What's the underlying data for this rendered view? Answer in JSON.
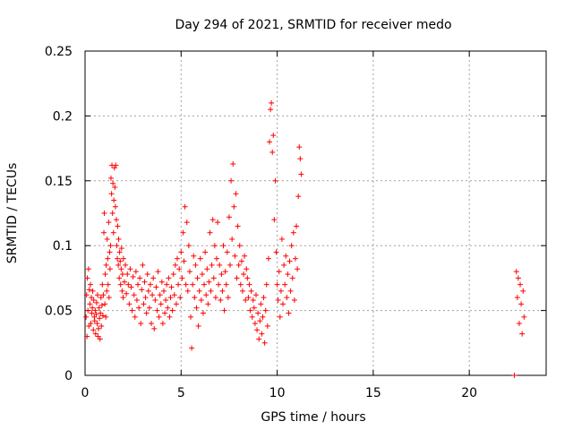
{
  "chart_data": {
    "type": "scatter",
    "title": "Day 294 of 2021, SRMTID for receiver medo",
    "xlabel": "GPS time / hours",
    "ylabel": "SRMTID / TECUs",
    "xlim": [
      0,
      24
    ],
    "ylim": [
      0,
      0.25
    ],
    "xticks": [
      0,
      5,
      10,
      15,
      20
    ],
    "yticks": [
      0,
      0.05,
      0.1,
      0.15,
      0.2,
      0.25
    ],
    "xtick_labels": [
      "0",
      "5",
      "10",
      "15",
      "20"
    ],
    "ytick_labels": [
      "0",
      "0.05",
      "0.1",
      "0.15",
      "0.2",
      "0.25"
    ],
    "grid": true,
    "marker": "+",
    "color": "#ff0000",
    "series": [
      {
        "name": "SRMTID",
        "points": [
          [
            0.05,
            0.045
          ],
          [
            0.08,
            0.062
          ],
          [
            0.1,
            0.03
          ],
          [
            0.12,
            0.075
          ],
          [
            0.15,
            0.05
          ],
          [
            0.18,
            0.082
          ],
          [
            0.2,
            0.038
          ],
          [
            0.22,
            0.066
          ],
          [
            0.25,
            0.055
          ],
          [
            0.28,
            0.07
          ],
          [
            0.3,
            0.04
          ],
          [
            0.33,
            0.06
          ],
          [
            0.35,
            0.048
          ],
          [
            0.38,
            0.052
          ],
          [
            0.4,
            0.065
          ],
          [
            0.43,
            0.035
          ],
          [
            0.45,
            0.058
          ],
          [
            0.48,
            0.045
          ],
          [
            0.5,
            0.042
          ],
          [
            0.53,
            0.05
          ],
          [
            0.55,
            0.032
          ],
          [
            0.58,
            0.047
          ],
          [
            0.6,
            0.056
          ],
          [
            0.63,
            0.04
          ],
          [
            0.65,
            0.062
          ],
          [
            0.68,
            0.03
          ],
          [
            0.7,
            0.036
          ],
          [
            0.73,
            0.052
          ],
          [
            0.75,
            0.044
          ],
          [
            0.78,
            0.028
          ],
          [
            0.8,
            0.048
          ],
          [
            0.83,
            0.06
          ],
          [
            0.85,
            0.038
          ],
          [
            0.88,
            0.054
          ],
          [
            0.9,
            0.07
          ],
          [
            0.93,
            0.046
          ],
          [
            0.95,
            0.062
          ],
          [
            0.98,
            0.11
          ],
          [
            1.0,
            0.125
          ],
          [
            1.03,
            0.055
          ],
          [
            1.05,
            0.078
          ],
          [
            1.08,
            0.045
          ],
          [
            1.1,
            0.085
          ],
          [
            1.13,
            0.065
          ],
          [
            1.15,
            0.105
          ],
          [
            1.18,
            0.09
          ],
          [
            1.2,
            0.07
          ],
          [
            1.23,
            0.118
          ],
          [
            1.25,
            0.06
          ],
          [
            1.28,
            0.095
          ],
          [
            1.3,
            0.082
          ],
          [
            1.33,
            0.1
          ],
          [
            1.35,
            0.152
          ],
          [
            1.38,
            0.14
          ],
          [
            1.4,
            0.162
          ],
          [
            1.43,
            0.125
          ],
          [
            1.45,
            0.148
          ],
          [
            1.48,
            0.11
          ],
          [
            1.5,
            0.135
          ],
          [
            1.53,
            0.16
          ],
          [
            1.55,
            0.145
          ],
          [
            1.58,
            0.13
          ],
          [
            1.6,
            0.162
          ],
          [
            1.63,
            0.12
          ],
          [
            1.65,
            0.1
          ],
          [
            1.68,
            0.09
          ],
          [
            1.7,
            0.115
          ],
          [
            1.73,
            0.085
          ],
          [
            1.75,
            0.105
          ],
          [
            1.78,
            0.075
          ],
          [
            1.8,
            0.095
          ],
          [
            1.83,
            0.088
          ],
          [
            1.85,
            0.07
          ],
          [
            1.88,
            0.082
          ],
          [
            1.9,
            0.098
          ],
          [
            1.93,
            0.065
          ],
          [
            1.95,
            0.078
          ],
          [
            1.98,
            0.06
          ],
          [
            2.0,
            0.09
          ],
          [
            2.05,
            0.072
          ],
          [
            2.1,
            0.085
          ],
          [
            2.15,
            0.063
          ],
          [
            2.2,
            0.078
          ],
          [
            2.25,
            0.07
          ],
          [
            2.3,
            0.055
          ],
          [
            2.35,
            0.082
          ],
          [
            2.4,
            0.068
          ],
          [
            2.45,
            0.05
          ],
          [
            2.5,
            0.076
          ],
          [
            2.55,
            0.062
          ],
          [
            2.6,
            0.045
          ],
          [
            2.65,
            0.08
          ],
          [
            2.7,
            0.058
          ],
          [
            2.75,
            0.07
          ],
          [
            2.8,
            0.052
          ],
          [
            2.85,
            0.075
          ],
          [
            2.9,
            0.04
          ],
          [
            2.95,
            0.066
          ],
          [
            3.0,
            0.085
          ],
          [
            3.05,
            0.055
          ],
          [
            3.1,
            0.072
          ],
          [
            3.15,
            0.06
          ],
          [
            3.2,
            0.048
          ],
          [
            3.25,
            0.078
          ],
          [
            3.3,
            0.065
          ],
          [
            3.35,
            0.052
          ],
          [
            3.4,
            0.07
          ],
          [
            3.45,
            0.04
          ],
          [
            3.5,
            0.062
          ],
          [
            3.55,
            0.075
          ],
          [
            3.6,
            0.036
          ],
          [
            3.65,
            0.058
          ],
          [
            3.7,
            0.068
          ],
          [
            3.75,
            0.05
          ],
          [
            3.8,
            0.08
          ],
          [
            3.85,
            0.045
          ],
          [
            3.9,
            0.062
          ],
          [
            3.95,
            0.055
          ],
          [
            4.0,
            0.072
          ],
          [
            4.05,
            0.04
          ],
          [
            4.1,
            0.065
          ],
          [
            4.15,
            0.048
          ],
          [
            4.2,
            0.058
          ],
          [
            4.25,
            0.07
          ],
          [
            4.3,
            0.052
          ],
          [
            4.35,
            0.075
          ],
          [
            4.4,
            0.045
          ],
          [
            4.45,
            0.06
          ],
          [
            4.5,
            0.068
          ],
          [
            4.55,
            0.05
          ],
          [
            4.6,
            0.078
          ],
          [
            4.65,
            0.062
          ],
          [
            4.7,
            0.085
          ],
          [
            4.75,
            0.055
          ],
          [
            4.8,
            0.09
          ],
          [
            4.85,
            0.07
          ],
          [
            4.9,
            0.082
          ],
          [
            4.95,
            0.06
          ],
          [
            5.0,
            0.095
          ],
          [
            5.05,
            0.075
          ],
          [
            5.1,
            0.11
          ],
          [
            5.15,
            0.088
          ],
          [
            5.2,
            0.13
          ],
          [
            5.25,
            0.07
          ],
          [
            5.3,
            0.118
          ],
          [
            5.35,
            0.065
          ],
          [
            5.4,
            0.1
          ],
          [
            5.45,
            0.08
          ],
          [
            5.5,
            0.045
          ],
          [
            5.55,
            0.021
          ],
          [
            5.6,
            0.07
          ],
          [
            5.65,
            0.092
          ],
          [
            5.7,
            0.06
          ],
          [
            5.75,
            0.085
          ],
          [
            5.8,
            0.052
          ],
          [
            5.85,
            0.075
          ],
          [
            5.9,
            0.038
          ],
          [
            5.95,
            0.065
          ],
          [
            6.0,
            0.09
          ],
          [
            6.05,
            0.058
          ],
          [
            6.1,
            0.078
          ],
          [
            6.15,
            0.048
          ],
          [
            6.2,
            0.07
          ],
          [
            6.25,
            0.095
          ],
          [
            6.3,
            0.062
          ],
          [
            6.35,
            0.082
          ],
          [
            6.4,
            0.055
          ],
          [
            6.45,
            0.072
          ],
          [
            6.5,
            0.11
          ],
          [
            6.55,
            0.065
          ],
          [
            6.6,
            0.085
          ],
          [
            6.65,
            0.12
          ],
          [
            6.7,
            0.075
          ],
          [
            6.75,
            0.1
          ],
          [
            6.8,
            0.06
          ],
          [
            6.85,
            0.09
          ],
          [
            6.9,
            0.118
          ],
          [
            6.95,
            0.07
          ],
          [
            7.0,
            0.085
          ],
          [
            7.05,
            0.058
          ],
          [
            7.1,
            0.078
          ],
          [
            7.15,
            0.065
          ],
          [
            7.2,
            0.1
          ],
          [
            7.25,
            0.05
          ],
          [
            7.3,
            0.08
          ],
          [
            7.35,
            0.07
          ],
          [
            7.4,
            0.095
          ],
          [
            7.45,
            0.06
          ],
          [
            7.5,
            0.122
          ],
          [
            7.55,
            0.085
          ],
          [
            7.6,
            0.15
          ],
          [
            7.65,
            0.105
          ],
          [
            7.7,
            0.163
          ],
          [
            7.75,
            0.13
          ],
          [
            7.8,
            0.092
          ],
          [
            7.85,
            0.14
          ],
          [
            7.9,
            0.075
          ],
          [
            7.95,
            0.115
          ],
          [
            8.0,
            0.085
          ],
          [
            8.05,
            0.1
          ],
          [
            8.1,
            0.07
          ],
          [
            8.15,
            0.088
          ],
          [
            8.2,
            0.065
          ],
          [
            8.25,
            0.078
          ],
          [
            8.3,
            0.092
          ],
          [
            8.35,
            0.058
          ],
          [
            8.4,
            0.082
          ],
          [
            8.45,
            0.075
          ],
          [
            8.5,
            0.06
          ],
          [
            8.55,
            0.07
          ],
          [
            8.6,
            0.05
          ],
          [
            8.65,
            0.065
          ],
          [
            8.7,
            0.045
          ],
          [
            8.75,
            0.058
          ],
          [
            8.8,
            0.052
          ],
          [
            8.85,
            0.04
          ],
          [
            8.9,
            0.062
          ],
          [
            8.95,
            0.035
          ],
          [
            9.0,
            0.048
          ],
          [
            9.05,
            0.028
          ],
          [
            9.1,
            0.042
          ],
          [
            9.15,
            0.055
          ],
          [
            9.2,
            0.032
          ],
          [
            9.25,
            0.045
          ],
          [
            9.3,
            0.06
          ],
          [
            9.35,
            0.025
          ],
          [
            9.4,
            0.05
          ],
          [
            9.45,
            0.07
          ],
          [
            9.5,
            0.038
          ],
          [
            9.55,
            0.09
          ],
          [
            9.6,
            0.18
          ],
          [
            9.65,
            0.205
          ],
          [
            9.7,
            0.21
          ],
          [
            9.75,
            0.172
          ],
          [
            9.8,
            0.185
          ],
          [
            9.85,
            0.12
          ],
          [
            9.9,
            0.15
          ],
          [
            9.95,
            0.095
          ],
          [
            10.0,
            0.07
          ],
          [
            10.05,
            0.058
          ],
          [
            10.1,
            0.08
          ],
          [
            10.15,
            0.045
          ],
          [
            10.2,
            0.065
          ],
          [
            10.25,
            0.105
          ],
          [
            10.3,
            0.055
          ],
          [
            10.35,
            0.085
          ],
          [
            10.4,
            0.07
          ],
          [
            10.45,
            0.092
          ],
          [
            10.5,
            0.06
          ],
          [
            10.55,
            0.078
          ],
          [
            10.6,
            0.048
          ],
          [
            10.65,
            0.088
          ],
          [
            10.7,
            0.065
          ],
          [
            10.75,
            0.1
          ],
          [
            10.8,
            0.075
          ],
          [
            10.85,
            0.11
          ],
          [
            10.9,
            0.058
          ],
          [
            10.95,
            0.09
          ],
          [
            11.0,
            0.115
          ],
          [
            11.05,
            0.082
          ],
          [
            11.1,
            0.138
          ],
          [
            11.15,
            0.176
          ],
          [
            11.2,
            0.167
          ],
          [
            11.25,
            0.155
          ],
          [
            22.35,
            0.0
          ],
          [
            22.45,
            0.08
          ],
          [
            22.5,
            0.06
          ],
          [
            22.55,
            0.075
          ],
          [
            22.6,
            0.04
          ],
          [
            22.65,
            0.07
          ],
          [
            22.7,
            0.055
          ],
          [
            22.75,
            0.032
          ],
          [
            22.8,
            0.065
          ],
          [
            22.85,
            0.045
          ]
        ]
      }
    ]
  }
}
